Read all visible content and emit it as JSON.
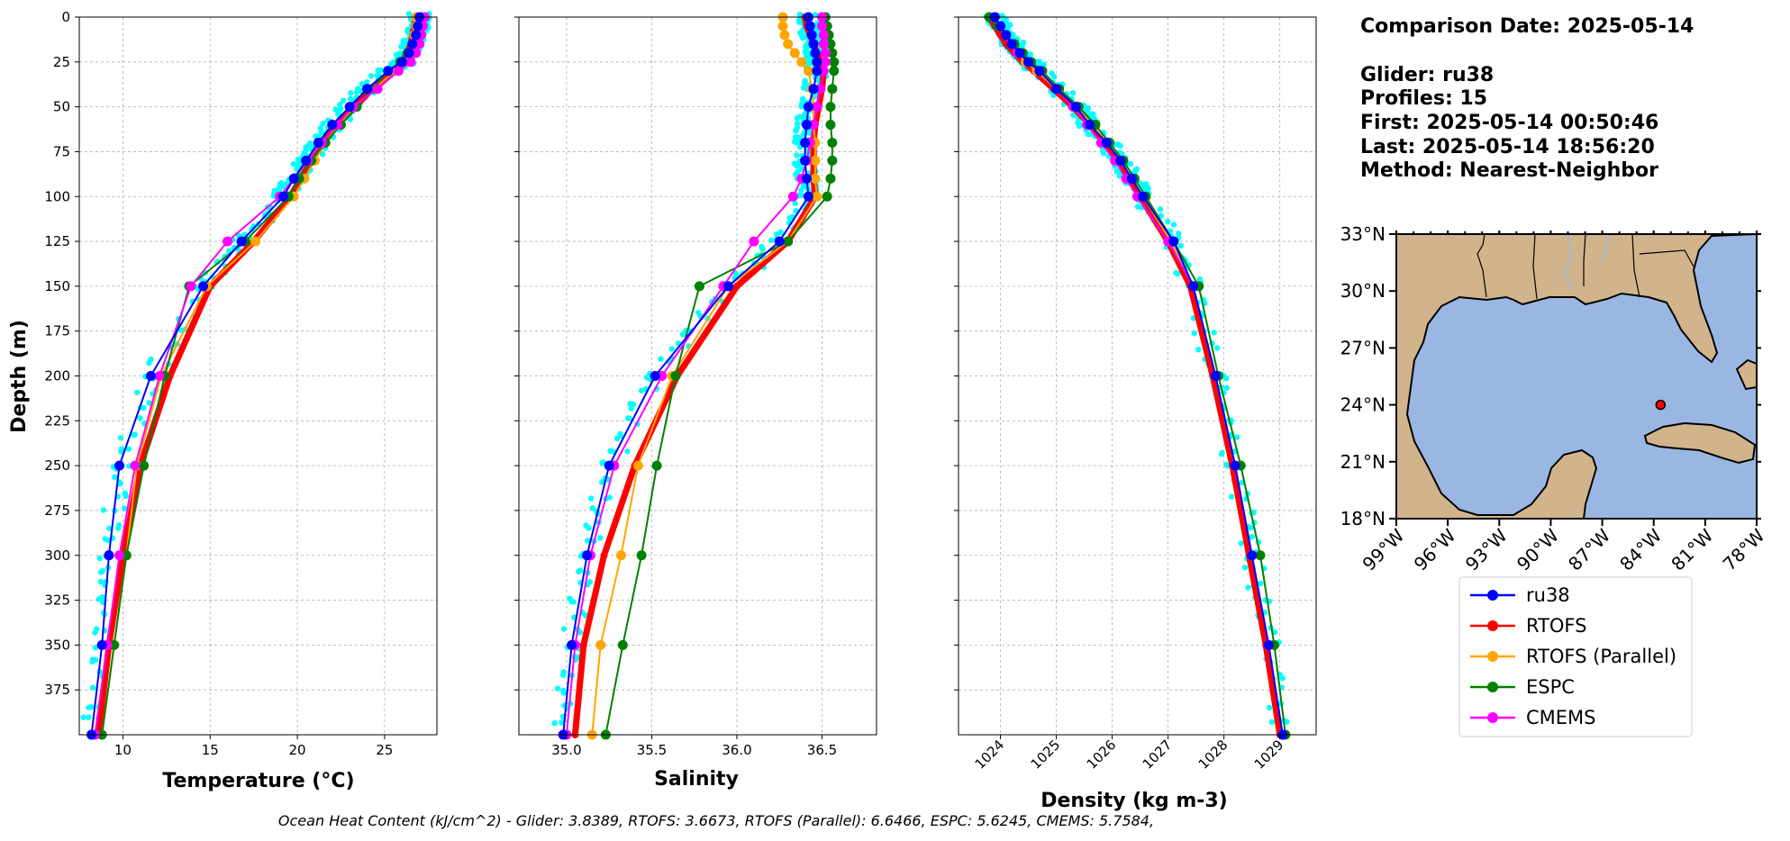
{
  "info": {
    "comparison_date": "Comparison Date: 2025-05-14",
    "glider": "Glider: ru38",
    "profiles": "Profiles: 15",
    "first": "First: 2025-05-14 00:50:46",
    "last": "Last: 2025-05-14 18:56:20",
    "method": "Method: Nearest-Neighbor"
  },
  "footer": "Ocean Heat Content (kJ/cm^2) - Glider: 3.8389,  RTOFS: 3.6673,  RTOFS (Parallel): 6.6466,  ESPC: 5.6245,  CMEMS: 5.7584,",
  "legend": [
    {
      "name": "ru38",
      "color": "#0000ff"
    },
    {
      "name": "RTOFS",
      "color": "#ff0000"
    },
    {
      "name": "RTOFS (Parallel)",
      "color": "#ffa500"
    },
    {
      "name": "ESPC",
      "color": "#008000"
    },
    {
      "name": "CMEMS",
      "color": "#ff00ff"
    }
  ],
  "colors": {
    "glider_raw": "#00ffff",
    "land": "#d2b48c",
    "water": "#9ab7e4",
    "grid": "#b0b0b0"
  },
  "chart_data": [
    {
      "type": "line",
      "xlabel": "Temperature (°C)",
      "ylabel": "Depth (m)",
      "xlim": [
        7.5,
        28
      ],
      "ylim": [
        400,
        0
      ],
      "xticks": [
        10,
        15,
        20,
        25
      ],
      "yticks": [
        0,
        25,
        50,
        75,
        100,
        125,
        150,
        175,
        200,
        225,
        250,
        275,
        300,
        325,
        350,
        375
      ],
      "grid": true,
      "depths": [
        0,
        5,
        10,
        15,
        20,
        25,
        30,
        40,
        50,
        60,
        70,
        80,
        90,
        100,
        125,
        150,
        200,
        250,
        300,
        350,
        400
      ],
      "series": [
        {
          "name": "ru38",
          "values": [
            27.0,
            26.9,
            26.8,
            26.6,
            26.4,
            26.0,
            25.2,
            24.0,
            23.0,
            22.0,
            21.2,
            20.5,
            19.8,
            19.2,
            16.8,
            14.6,
            11.6,
            9.8,
            9.2,
            8.8,
            8.2
          ]
        },
        {
          "name": "RTOFS",
          "values": [
            26.8,
            26.7,
            26.6,
            26.5,
            26.3,
            26.0,
            25.5,
            24.3,
            23.3,
            22.3,
            21.5,
            20.8,
            20.2,
            19.6,
            17.5,
            15.0,
            12.7,
            11.0,
            10.0,
            9.2,
            8.6
          ]
        },
        {
          "name": "RTOFS (Parallel)",
          "values": [
            26.8,
            26.8,
            26.7,
            26.6,
            26.5,
            26.3,
            25.6,
            24.4,
            23.3,
            22.4,
            21.6,
            21.0,
            20.4,
            19.8,
            17.6,
            14.8,
            12.2,
            10.8,
            10.2,
            9.5,
            8.8
          ]
        },
        {
          "name": "ESPC",
          "values": [
            27.1,
            27.0,
            26.8,
            26.6,
            26.3,
            25.9,
            25.2,
            24.3,
            23.4,
            22.5,
            21.6,
            20.8,
            20.1,
            19.5,
            17.0,
            13.8,
            12.4,
            11.2,
            10.2,
            9.5,
            8.8
          ]
        },
        {
          "name": "CMEMS",
          "values": [
            27.3,
            27.2,
            27.1,
            27.0,
            26.8,
            26.5,
            25.8,
            24.6,
            23.2,
            22.3,
            21.4,
            20.6,
            19.8,
            19.0,
            16.0,
            13.9,
            12.1,
            10.7,
            9.8,
            9.1,
            8.4
          ]
        }
      ]
    },
    {
      "type": "line",
      "xlabel": "Salinity",
      "xlim": [
        34.72,
        36.82
      ],
      "ylim": [
        400,
        0
      ],
      "xticks": [
        35.0,
        35.5,
        36.0,
        36.5
      ],
      "grid": true,
      "depths": [
        0,
        5,
        10,
        15,
        20,
        25,
        30,
        40,
        50,
        60,
        70,
        80,
        90,
        100,
        125,
        150,
        200,
        250,
        300,
        350,
        400
      ],
      "series": [
        {
          "name": "ru38",
          "values": [
            36.42,
            36.43,
            36.44,
            36.45,
            36.46,
            36.47,
            36.47,
            36.45,
            36.42,
            36.41,
            36.4,
            36.4,
            36.41,
            36.42,
            36.25,
            35.95,
            35.52,
            35.25,
            35.12,
            35.03,
            34.98
          ]
        },
        {
          "name": "RTOFS",
          "values": [
            36.4,
            36.41,
            36.43,
            36.45,
            36.47,
            36.49,
            36.51,
            36.5,
            36.48,
            36.46,
            36.45,
            36.45,
            36.45,
            36.46,
            36.3,
            36.0,
            35.65,
            35.4,
            35.22,
            35.1,
            35.05
          ]
        },
        {
          "name": "RTOFS (Parallel)",
          "values": [
            36.27,
            36.27,
            36.28,
            36.3,
            36.34,
            36.38,
            36.42,
            36.44,
            36.45,
            36.45,
            36.46,
            36.46,
            36.46,
            36.47,
            36.3,
            35.95,
            35.62,
            35.42,
            35.32,
            35.2,
            35.15
          ]
        },
        {
          "name": "ESPC",
          "values": [
            36.52,
            36.53,
            36.54,
            36.55,
            36.56,
            36.57,
            36.57,
            36.56,
            36.55,
            36.55,
            36.56,
            36.56,
            36.55,
            36.53,
            36.3,
            35.78,
            35.64,
            35.53,
            35.44,
            35.33,
            35.23
          ]
        },
        {
          "name": "CMEMS",
          "values": [
            36.5,
            36.5,
            36.51,
            36.51,
            36.52,
            36.52,
            36.51,
            36.49,
            36.47,
            36.45,
            36.43,
            36.41,
            36.38,
            36.33,
            36.1,
            35.92,
            35.56,
            35.28,
            35.14,
            35.05,
            35.0
          ]
        }
      ]
    },
    {
      "type": "line",
      "xlabel": "Density (kg m-3)",
      "xlim": [
        1023.25,
        1029.65
      ],
      "ylim": [
        400,
        0
      ],
      "xticks": [
        1024,
        1025,
        1026,
        1027,
        1028,
        1029
      ],
      "grid": true,
      "depths": [
        0,
        5,
        10,
        15,
        20,
        25,
        30,
        40,
        50,
        60,
        70,
        80,
        90,
        100,
        125,
        150,
        200,
        250,
        300,
        350,
        400
      ],
      "series": [
        {
          "name": "ru38",
          "values": [
            1023.9,
            1024.0,
            1024.1,
            1024.2,
            1024.35,
            1024.5,
            1024.7,
            1025.0,
            1025.35,
            1025.6,
            1025.9,
            1026.15,
            1026.35,
            1026.55,
            1027.1,
            1027.45,
            1027.85,
            1028.2,
            1028.5,
            1028.8,
            1029.05
          ]
        },
        {
          "name": "RTOFS",
          "values": [
            1023.8,
            1023.9,
            1024.0,
            1024.1,
            1024.25,
            1024.4,
            1024.6,
            1024.95,
            1025.3,
            1025.6,
            1025.85,
            1026.1,
            1026.3,
            1026.5,
            1027.0,
            1027.4,
            1027.8,
            1028.15,
            1028.45,
            1028.75,
            1029.0
          ]
        },
        {
          "name": "RTOFS (Parallel)",
          "values": [
            1023.9,
            1024.0,
            1024.1,
            1024.2,
            1024.3,
            1024.45,
            1024.65,
            1025.0,
            1025.35,
            1025.65,
            1025.9,
            1026.15,
            1026.35,
            1026.55,
            1027.05,
            1027.45,
            1027.85,
            1028.2,
            1028.5,
            1028.8,
            1029.05
          ]
        },
        {
          "name": "ESPC",
          "values": [
            1023.8,
            1023.95,
            1024.1,
            1024.25,
            1024.4,
            1024.55,
            1024.75,
            1025.05,
            1025.4,
            1025.7,
            1025.95,
            1026.2,
            1026.4,
            1026.6,
            1027.1,
            1027.55,
            1027.9,
            1028.3,
            1028.65,
            1028.9,
            1029.1
          ]
        },
        {
          "name": "CMEMS",
          "values": [
            1023.9,
            1024.0,
            1024.1,
            1024.2,
            1024.3,
            1024.5,
            1024.7,
            1025.0,
            1025.3,
            1025.55,
            1025.8,
            1026.05,
            1026.25,
            1026.45,
            1027.0,
            1027.45,
            1027.85,
            1028.2,
            1028.5,
            1028.8,
            1029.05
          ]
        }
      ]
    },
    {
      "type": "map",
      "lon_range": [
        -99,
        -78
      ],
      "lat_range": [
        18,
        33
      ],
      "xticks": [
        "99°W",
        "96°W",
        "93°W",
        "90°W",
        "87°W",
        "84°W",
        "81°W",
        "78°W"
      ],
      "yticks": [
        "18°N",
        "21°N",
        "24°N",
        "27°N",
        "30°N",
        "33°N"
      ],
      "glider_position": {
        "lon": -83.6,
        "lat": 24.0
      }
    }
  ]
}
